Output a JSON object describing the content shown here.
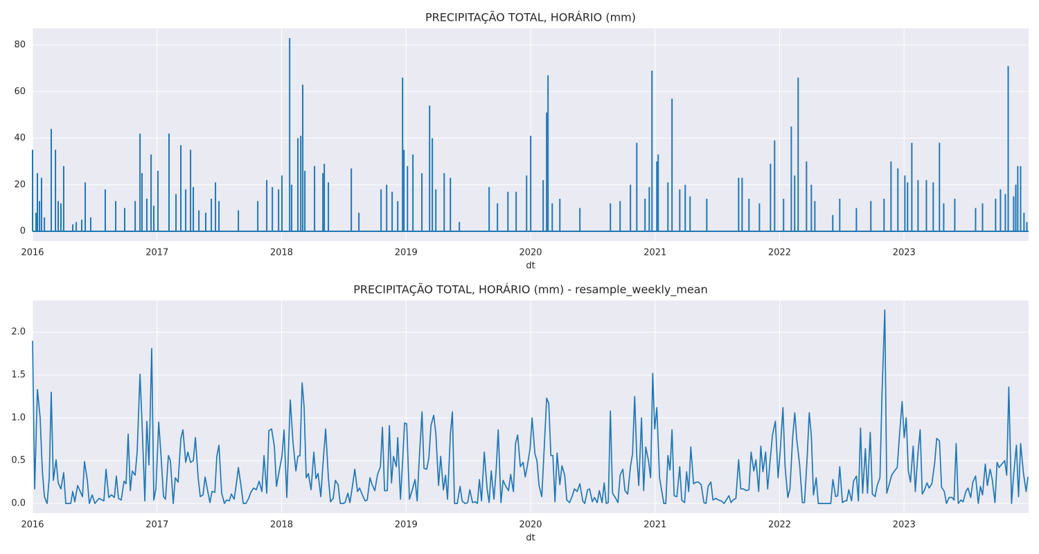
{
  "chart_data": [
    {
      "type": "stem",
      "title": "PRECIPITAÇÃO TOTAL, HORÁRIO (mm)",
      "x_label": "dt",
      "color": "#1f77b4",
      "grid": true,
      "xlim": [
        2016,
        2024
      ],
      "xticks": [
        2016,
        2017,
        2018,
        2019,
        2020,
        2021,
        2022,
        2023
      ],
      "ylim": [
        -4.15,
        87.15
      ],
      "yticks": [
        0,
        20,
        40,
        60,
        80
      ],
      "x": [
        2016.0,
        2016.028,
        2016.039,
        2016.056,
        2016.072,
        2016.095,
        2016.15,
        2016.184,
        2016.206,
        2016.228,
        2016.25,
        2016.323,
        2016.351,
        2016.395,
        2016.423,
        2016.467,
        2016.584,
        2016.668,
        2016.74,
        2016.824,
        2016.863,
        2016.879,
        2016.918,
        2016.952,
        2016.974,
        2017.007,
        2017.096,
        2017.152,
        2017.191,
        2017.23,
        2017.269,
        2017.291,
        2017.336,
        2017.391,
        2017.436,
        2017.469,
        2017.497,
        2017.653,
        2017.809,
        2017.881,
        2017.926,
        2017.976,
        2018.003,
        2018.065,
        2018.081,
        2018.131,
        2018.154,
        2018.17,
        2018.187,
        2018.265,
        2018.332,
        2018.343,
        2018.376,
        2018.56,
        2018.621,
        2018.799,
        2018.844,
        2018.888,
        2018.933,
        2018.972,
        2018.983,
        2019.011,
        2019.055,
        2019.127,
        2019.189,
        2019.211,
        2019.239,
        2019.306,
        2019.356,
        2019.428,
        2019.667,
        2019.734,
        2019.818,
        2019.884,
        2019.968,
        2020.001,
        2020.101,
        2020.129,
        2020.14,
        2020.174,
        2020.235,
        2020.396,
        2020.641,
        2020.719,
        2020.802,
        2020.853,
        2020.919,
        2020.953,
        2020.975,
        2021.014,
        2021.025,
        2021.103,
        2021.136,
        2021.198,
        2021.242,
        2021.281,
        2021.415,
        2021.671,
        2021.699,
        2021.754,
        2021.838,
        2021.927,
        2021.96,
        2022.032,
        2022.094,
        2022.121,
        2022.149,
        2022.216,
        2022.255,
        2022.283,
        2022.427,
        2022.483,
        2022.617,
        2022.733,
        2022.839,
        2022.895,
        2022.95,
        2023.006,
        2023.028,
        2023.062,
        2023.112,
        2023.179,
        2023.234,
        2023.284,
        2023.318,
        2023.407,
        2023.574,
        2023.63,
        2023.735,
        2023.774,
        2023.813,
        2023.836,
        2023.88,
        2023.897,
        2023.913,
        2023.936,
        2023.963,
        2023.986
      ],
      "values": [
        35,
        8,
        25,
        13,
        23,
        6,
        44,
        35,
        13,
        12,
        28,
        3,
        4,
        5,
        21,
        6,
        18,
        13,
        10,
        13,
        42,
        25,
        14,
        33,
        11,
        26,
        42,
        16,
        37,
        18,
        35,
        19,
        9,
        8,
        14,
        21,
        13,
        9,
        13,
        22,
        19,
        18,
        24,
        83,
        20,
        40,
        41,
        63,
        26,
        28,
        25,
        29,
        21,
        27,
        8,
        18,
        20,
        17,
        13,
        66,
        35,
        28,
        33,
        25,
        54,
        40,
        18,
        25,
        23,
        4,
        19,
        12,
        17,
        17,
        24,
        41,
        22,
        51,
        67,
        12,
        14,
        10,
        12,
        13,
        20,
        38,
        14,
        19,
        69,
        30,
        33,
        21,
        57,
        18,
        20,
        15,
        14,
        23,
        23,
        14,
        12,
        29,
        39,
        14,
        45,
        24,
        66,
        30,
        20,
        13,
        7,
        14,
        10,
        13,
        14,
        30,
        27,
        24,
        21,
        38,
        22,
        22,
        21,
        38,
        12,
        14,
        10,
        12,
        14,
        18,
        16,
        71,
        15,
        20,
        28,
        28,
        8,
        4
      ]
    },
    {
      "type": "line",
      "title": "PRECIPITAÇÃO TOTAL, HORÁRIO (mm) - resample_weekly_mean",
      "x_label": "dt",
      "color": "#1f77b4",
      "grid": true,
      "xlim": [
        2016,
        2024
      ],
      "xticks": [
        2016,
        2017,
        2018,
        2019,
        2020,
        2021,
        2022,
        2023
      ],
      "ylim": [
        -0.113,
        2.37
      ],
      "yticks": [
        {
          "value": 0,
          "label": "0.0"
        },
        0.5,
        {
          "value": 1,
          "label": "1.0"
        },
        1.5,
        {
          "value": 2,
          "label": "2.0"
        }
      ],
      "x": [
        2016.0,
        2016.017,
        2016.039,
        2016.061,
        2016.078,
        2016.095,
        2016.117,
        2016.134,
        2016.15,
        2016.167,
        2016.189,
        2016.206,
        2016.228,
        2016.25,
        2016.267,
        2016.306,
        2016.323,
        2016.339,
        2016.362,
        2016.401,
        2016.417,
        2016.44,
        2016.456,
        2016.479,
        2016.501,
        2016.534,
        2016.573,
        2016.59,
        2016.612,
        2016.634,
        2016.657,
        2016.673,
        2016.69,
        2016.712,
        2016.735,
        2016.751,
        2016.768,
        2016.785,
        2016.801,
        2016.824,
        2016.84,
        2016.863,
        2016.879,
        2016.902,
        2016.918,
        2016.935,
        2016.957,
        2016.974,
        2016.991,
        2017.013,
        2017.03,
        2017.052,
        2017.068,
        2017.091,
        2017.107,
        2017.13,
        2017.146,
        2017.169,
        2017.191,
        2017.208,
        2017.23,
        2017.247,
        2017.269,
        2017.291,
        2017.308,
        2017.33,
        2017.347,
        2017.369,
        2017.386,
        2017.402,
        2017.425,
        2017.441,
        2017.464,
        2017.48,
        2017.497,
        2017.519,
        2017.541,
        2017.558,
        2017.58,
        2017.597,
        2017.619,
        2017.636,
        2017.653,
        2017.675,
        2017.692,
        2017.714,
        2017.736,
        2017.753,
        2017.775,
        2017.797,
        2017.82,
        2017.842,
        2017.859,
        2017.881,
        2017.898,
        2017.92,
        2017.942,
        2017.959,
        2017.981,
        2018.003,
        2018.02,
        2018.042,
        2018.07,
        2018.092,
        2018.115,
        2018.131,
        2018.148,
        2018.165,
        2018.181,
        2018.198,
        2018.215,
        2018.237,
        2018.259,
        2018.276,
        2018.293,
        2018.315,
        2018.332,
        2018.354,
        2018.376,
        2018.393,
        2018.415,
        2018.432,
        2018.454,
        2018.471,
        2018.493,
        2018.51,
        2018.532,
        2018.549,
        2018.571,
        2018.588,
        2018.61,
        2018.627,
        2018.649,
        2018.671,
        2018.688,
        2018.71,
        2018.727,
        2018.749,
        2018.771,
        2018.794,
        2018.81,
        2018.827,
        2018.849,
        2018.866,
        2018.883,
        2018.899,
        2018.922,
        2018.933,
        2018.955,
        2018.972,
        2018.988,
        2019.005,
        2019.027,
        2019.05,
        2019.072,
        2019.089,
        2019.105,
        2019.128,
        2019.144,
        2019.166,
        2019.183,
        2019.2,
        2019.222,
        2019.239,
        2019.261,
        2019.278,
        2019.3,
        2019.317,
        2019.333,
        2019.356,
        2019.372,
        2019.389,
        2019.411,
        2019.434,
        2019.45,
        2019.473,
        2019.495,
        2019.512,
        2019.534,
        2019.556,
        2019.573,
        2019.589,
        2019.606,
        2019.628,
        2019.651,
        2019.667,
        2019.684,
        2019.706,
        2019.723,
        2019.74,
        2019.762,
        2019.779,
        2019.801,
        2019.823,
        2019.84,
        2019.862,
        2019.879,
        2019.896,
        2019.918,
        2019.94,
        2019.957,
        2019.973,
        2019.996,
        2020.012,
        2020.035,
        2020.051,
        2020.068,
        2020.09,
        2020.113,
        2020.129,
        2020.146,
        2020.163,
        2020.179,
        2020.196,
        2020.213,
        2020.235,
        2020.252,
        2020.274,
        2020.291,
        2020.313,
        2020.335,
        2020.352,
        2020.374,
        2020.396,
        2020.419,
        2020.435,
        2020.458,
        2020.474,
        2020.496,
        2020.513,
        2020.535,
        2020.552,
        2020.574,
        2020.591,
        2020.608,
        2020.624,
        2020.641,
        2020.658,
        2020.68,
        2020.702,
        2020.719,
        2020.741,
        2020.758,
        2020.78,
        2020.803,
        2020.819,
        2020.836,
        2020.853,
        2020.869,
        2020.891,
        2020.908,
        2020.925,
        2020.947,
        2020.964,
        2020.981,
        2020.997,
        2021.014,
        2021.036,
        2021.07,
        2021.086,
        2021.103,
        2021.12,
        2021.136,
        2021.153,
        2021.175,
        2021.198,
        2021.214,
        2021.237,
        2021.253,
        2021.27,
        2021.287,
        2021.309,
        2021.331,
        2021.348,
        2021.37,
        2021.392,
        2021.409,
        2021.426,
        2021.448,
        2021.465,
        2021.487,
        2021.509,
        2021.532,
        2021.554,
        2021.571,
        2021.593,
        2021.61,
        2021.626,
        2021.649,
        2021.671,
        2021.688,
        2021.71,
        2021.732,
        2021.754,
        2021.771,
        2021.793,
        2021.81,
        2021.832,
        2021.849,
        2021.866,
        2021.888,
        2021.904,
        2021.927,
        2021.943,
        2021.966,
        2021.988,
        2022.004,
        2022.027,
        2022.044,
        2022.066,
        2022.083,
        2022.105,
        2022.122,
        2022.138,
        2022.161,
        2022.183,
        2022.2,
        2022.222,
        2022.238,
        2022.255,
        2022.272,
        2022.294,
        2022.311,
        2022.333,
        2022.361,
        2022.389,
        2022.411,
        2022.428,
        2022.45,
        2022.467,
        2022.483,
        2022.505,
        2022.522,
        2022.539,
        2022.556,
        2022.578,
        2022.594,
        2022.617,
        2022.633,
        2022.65,
        2022.667,
        2022.689,
        2022.706,
        2022.728,
        2022.745,
        2022.767,
        2022.784,
        2022.806,
        2022.823,
        2022.845,
        2022.861,
        2022.878,
        2022.9,
        2022.923,
        2022.945,
        2022.962,
        2022.984,
        2023.001,
        2023.017,
        2023.034,
        2023.051,
        2023.073,
        2023.09,
        2023.112,
        2023.129,
        2023.146,
        2023.162,
        2023.184,
        2023.201,
        2023.223,
        2023.246,
        2023.262,
        2023.284,
        2023.301,
        2023.323,
        2023.34,
        2023.362,
        2023.385,
        2023.401,
        2023.418,
        2023.435,
        2023.457,
        2023.474,
        2023.496,
        2023.513,
        2023.535,
        2023.552,
        2023.574,
        2023.596,
        2023.613,
        2023.63,
        2023.652,
        2023.669,
        2023.691,
        2023.708,
        2023.73,
        2023.747,
        2023.763,
        2023.785,
        2023.808,
        2023.824,
        2023.841,
        2023.863,
        2023.88,
        2023.902,
        2023.919,
        2023.936,
        2023.958,
        2023.98,
        2023.995
      ],
      "values": [
        1.9,
        0.17,
        1.33,
        1.0,
        0.4,
        0.08,
        0,
        0.3,
        1.3,
        0.27,
        0.51,
        0.24,
        0.17,
        0.36,
        0,
        0,
        0.14,
        0.02,
        0.21,
        0.08,
        0.49,
        0.27,
        0,
        0.1,
        0,
        0.06,
        0.03,
        0.4,
        0.07,
        0.1,
        0.07,
        0.32,
        0.06,
        0.04,
        0.26,
        0.23,
        0.81,
        0.15,
        0.38,
        0.33,
        0.6,
        1.51,
        0.95,
        0.03,
        0.96,
        0.45,
        1.81,
        0.04,
        0.17,
        0.95,
        0.6,
        0.08,
        0.05,
        0.56,
        0.5,
        0,
        0.3,
        0.25,
        0.76,
        0.86,
        0.48,
        0.6,
        0.48,
        0.5,
        0.77,
        0.3,
        0.08,
        0.1,
        0.31,
        0.18,
        0.01,
        0.14,
        0.13,
        0.55,
        0.68,
        0.12,
        0,
        0.04,
        0.03,
        0.11,
        0.05,
        0.22,
        0.42,
        0.2,
        0,
        0,
        0.06,
        0.13,
        0.18,
        0.16,
        0.26,
        0.14,
        0.56,
        0.12,
        0.85,
        0.87,
        0.67,
        0.2,
        0.38,
        0.55,
        0.86,
        0.07,
        1.21,
        0.71,
        0.38,
        0.55,
        0.56,
        1.41,
        1.13,
        0.3,
        0.35,
        0.16,
        0.6,
        0.29,
        0.35,
        0.08,
        0.45,
        0.87,
        0.3,
        0.02,
        0.06,
        0.27,
        0.22,
        0,
        0,
        0.01,
        0.12,
        0.01,
        0.22,
        0.4,
        0.14,
        0.18,
        0.1,
        0.03,
        0.04,
        0.3,
        0.22,
        0.15,
        0.34,
        0.43,
        0.89,
        0.15,
        0.15,
        0.91,
        0.24,
        0.55,
        0.43,
        0.77,
        0.05,
        0.49,
        0.94,
        0.93,
        0.05,
        0.16,
        0.28,
        0.03,
        0.5,
        1.07,
        0.41,
        0.4,
        0.53,
        0.91,
        1.03,
        0.82,
        0.21,
        0.55,
        0.16,
        0.33,
        0.05,
        0.81,
        1.07,
        0,
        0,
        0.2,
        0.03,
        0,
        0.01,
        0.16,
        0.01,
        0.02,
        0,
        0.28,
        0.03,
        0.6,
        0.17,
        0.01,
        0.38,
        0.05,
        0.38,
        0.86,
        0.01,
        0.27,
        0.2,
        0.15,
        0.34,
        0.14,
        0.7,
        0.8,
        0.43,
        0.48,
        0.31,
        0.43,
        0.64,
        1.0,
        0.58,
        0.5,
        0.21,
        0.08,
        0.75,
        1.23,
        1.17,
        0.56,
        0.56,
        0.02,
        0.59,
        0.22,
        0.44,
        0.33,
        0.04,
        0.01,
        0.09,
        0.17,
        0.14,
        0.23,
        0.03,
        0,
        0.16,
        0.17,
        0.02,
        0.07,
        0.01,
        0.15,
        0.01,
        0.24,
        0,
        0.01,
        1.08,
        0.12,
        0.07,
        0.01,
        0.33,
        0.4,
        0.15,
        0.11,
        0.44,
        0.58,
        1.25,
        0.55,
        0.21,
        1.0,
        0.15,
        0.66,
        0.5,
        0.3,
        1.52,
        0.87,
        1.12,
        0.3,
        0,
        0,
        0.56,
        0.39,
        0.86,
        0.09,
        0.08,
        0.43,
        0.04,
        0.01,
        0.37,
        0.14,
        0.66,
        0.23,
        0.25,
        0.25,
        0.22,
        0.01,
        0,
        0.2,
        0.25,
        0.04,
        0.06,
        0.04,
        0.03,
        0,
        0.04,
        0.09,
        0.01,
        0.04,
        0.06,
        0.51,
        0.17,
        0.17,
        0.15,
        0.16,
        0.6,
        0.38,
        0.51,
        0.14,
        0.67,
        0.37,
        0.6,
        0.17,
        0.55,
        0.8,
        0.96,
        0.3,
        0.6,
        1.12,
        0.43,
        0.07,
        0.17,
        0.77,
        1.06,
        0.75,
        0.45,
        0.01,
        0.01,
        0.55,
        1.06,
        0.79,
        0.1,
        0.3,
        0,
        0,
        0,
        0,
        0,
        0.28,
        0.08,
        0.09,
        0.43,
        0.01,
        0.03,
        0.03,
        0.16,
        0.03,
        0.26,
        0.32,
        0.03,
        0.88,
        0.12,
        0.64,
        0.12,
        0.83,
        0.11,
        0.08,
        0.21,
        0.3,
        1.3,
        2.26,
        0.12,
        0.21,
        0.33,
        0.38,
        0.42,
        0.78,
        1.19,
        0.77,
        1.0,
        0.38,
        0.25,
        0.67,
        0.14,
        0.6,
        0.86,
        0.11,
        0.15,
        0.24,
        0.18,
        0.23,
        0.48,
        0.76,
        0.73,
        0.19,
        0.14,
        0,
        0.07,
        0.07,
        0.04,
        0.7,
        0,
        0.04,
        0.02,
        0.14,
        0.18,
        0.07,
        0.25,
        0.32,
        0,
        0.2,
        0.1,
        0.46,
        0.21,
        0.4,
        0.28,
        0.01,
        0.48,
        0.42,
        0.46,
        0.5,
        0.33,
        1.36,
        0,
        0.34,
        0.68,
        0.08,
        0.7,
        0.36,
        0.14,
        0.31
      ]
    }
  ]
}
